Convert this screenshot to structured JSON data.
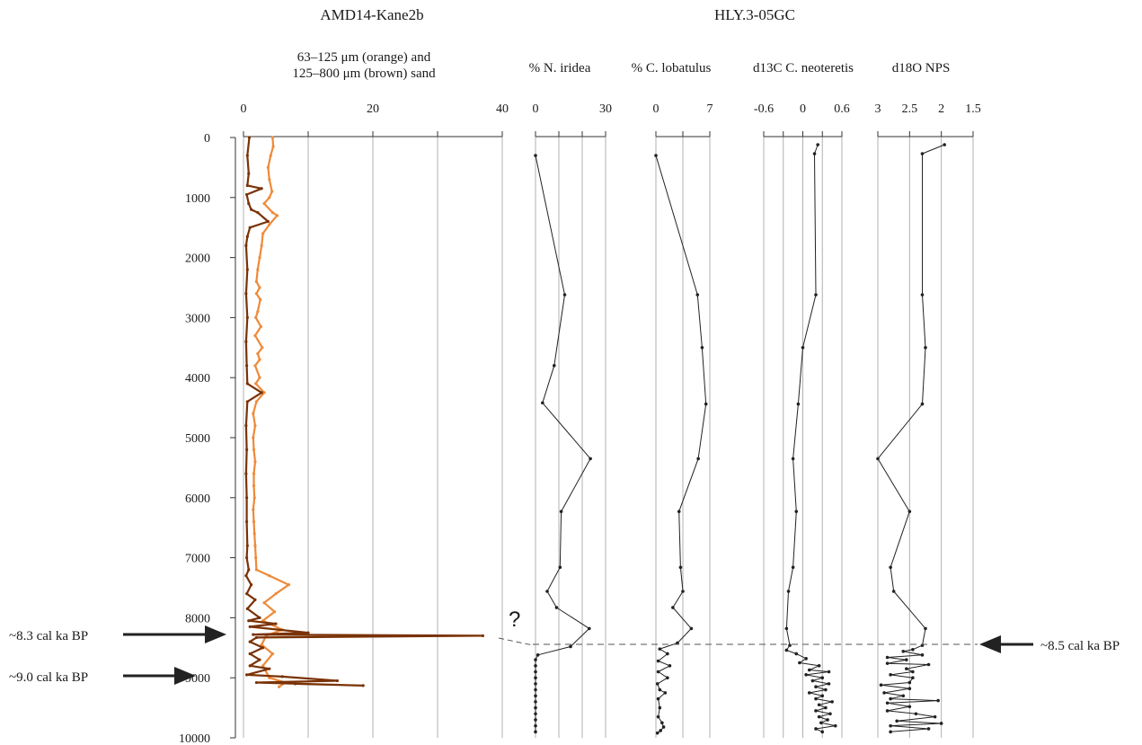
{
  "titles": {
    "left": "AMD14-Kane2b",
    "right": "HLY.3-05GC"
  },
  "annotations": {
    "question_mark": "?",
    "arrow_83": "~8.3 cal ka BP",
    "arrow_90": "~9.0 cal ka BP",
    "arrow_85": "~8.5 cal ka BP"
  },
  "colors": {
    "orange": "#ee8a3a",
    "brown": "#7a3206",
    "black": "#222222",
    "grid": "#b0b0b0"
  },
  "chart_data": [
    {
      "type": "line",
      "name": "sand",
      "title_lines": [
        "63–125 μm (orange) and",
        "125–800 μm (brown) sand"
      ],
      "xlim": [
        0,
        40
      ],
      "x_ticks": [
        "0",
        "20",
        "40"
      ],
      "x_tick_values": [
        0,
        20,
        40
      ],
      "y_ticks": [
        "0",
        "1000",
        "2000",
        "3000",
        "4000",
        "5000",
        "6000",
        "7000",
        "8000",
        "9000",
        "10000"
      ],
      "ylim": [
        0,
        10000
      ],
      "grid": true,
      "series": [
        {
          "color": "orange",
          "points": [
            [
              4.5,
              0
            ],
            [
              4.6,
              150
            ],
            [
              4.2,
              300
            ],
            [
              3.8,
              500
            ],
            [
              4.0,
              700
            ],
            [
              4.4,
              900
            ],
            [
              4.0,
              1000
            ],
            [
              3.2,
              1100
            ],
            [
              4.5,
              1250
            ],
            [
              5.2,
              1300
            ],
            [
              4.0,
              1450
            ],
            [
              3.0,
              1600
            ],
            [
              2.8,
              1800
            ],
            [
              2.5,
              2000
            ],
            [
              2.2,
              2200
            ],
            [
              2.0,
              2400
            ],
            [
              2.5,
              2500
            ],
            [
              2.0,
              2600
            ],
            [
              2.6,
              2700
            ],
            [
              2.2,
              2900
            ],
            [
              1.9,
              3000
            ],
            [
              2.7,
              3150
            ],
            [
              1.8,
              3300
            ],
            [
              2.9,
              3500
            ],
            [
              2.2,
              3600
            ],
            [
              2.5,
              3700
            ],
            [
              1.8,
              3800
            ],
            [
              2.5,
              4000
            ],
            [
              1.9,
              4100
            ],
            [
              3.2,
              4250
            ],
            [
              2.0,
              4400
            ],
            [
              1.5,
              4600
            ],
            [
              1.8,
              4800
            ],
            [
              1.5,
              5000
            ],
            [
              1.6,
              5200
            ],
            [
              1.8,
              5400
            ],
            [
              1.6,
              5600
            ],
            [
              1.6,
              5800
            ],
            [
              1.7,
              6000
            ],
            [
              1.5,
              6200
            ],
            [
              1.6,
              6400
            ],
            [
              1.7,
              6600
            ],
            [
              1.8,
              6800
            ],
            [
              1.9,
              7000
            ],
            [
              2.0,
              7200
            ],
            [
              4.0,
              7300
            ],
            [
              7.0,
              7450
            ],
            [
              5.0,
              7600
            ],
            [
              3.2,
              7750
            ],
            [
              4.8,
              7900
            ],
            [
              3.0,
              8050
            ],
            [
              6.0,
              8200
            ],
            [
              3.5,
              8300
            ],
            [
              2.8,
              8450
            ],
            [
              4.5,
              8600
            ],
            [
              3.0,
              8800
            ],
            [
              4.0,
              9000
            ],
            [
              6.5,
              9080
            ],
            [
              5.5,
              9150
            ]
          ]
        },
        {
          "color": "brown",
          "points": [
            [
              0.9,
              0
            ],
            [
              0.6,
              300
            ],
            [
              0.8,
              600
            ],
            [
              0.6,
              800
            ],
            [
              2.8,
              850
            ],
            [
              0.5,
              950
            ],
            [
              0.8,
              1100
            ],
            [
              1.2,
              1200
            ],
            [
              2.2,
              1250
            ],
            [
              3.8,
              1400
            ],
            [
              1.0,
              1500
            ],
            [
              0.6,
              1650
            ],
            [
              0.4,
              1800
            ],
            [
              0.6,
              2200
            ],
            [
              0.4,
              2600
            ],
            [
              0.6,
              3000
            ],
            [
              0.4,
              3400
            ],
            [
              0.5,
              3800
            ],
            [
              0.6,
              4100
            ],
            [
              2.8,
              4250
            ],
            [
              0.6,
              4400
            ],
            [
              0.4,
              4800
            ],
            [
              0.5,
              5200
            ],
            [
              0.4,
              5600
            ],
            [
              0.5,
              6000
            ],
            [
              0.5,
              6400
            ],
            [
              0.6,
              6800
            ],
            [
              0.5,
              7000
            ],
            [
              0.8,
              7200
            ],
            [
              0.4,
              7300
            ],
            [
              1.2,
              7450
            ],
            [
              0.5,
              7600
            ],
            [
              1.8,
              7700
            ],
            [
              0.6,
              7850
            ],
            [
              2.5,
              8000
            ],
            [
              0.8,
              8050
            ],
            [
              5.0,
              8100
            ],
            [
              1.0,
              8150
            ],
            [
              10.0,
              8250
            ],
            [
              1.5,
              8280
            ],
            [
              37.0,
              8300
            ],
            [
              2.0,
              8330
            ],
            [
              1.0,
              8400
            ],
            [
              3.0,
              8500
            ],
            [
              1.0,
              8600
            ],
            [
              2.5,
              8700
            ],
            [
              1.0,
              8800
            ],
            [
              4.0,
              8850
            ],
            [
              0.5,
              8950
            ],
            [
              6.0,
              8980
            ],
            [
              14.5,
              9050
            ],
            [
              2.0,
              9080
            ],
            [
              18.5,
              9130
            ],
            [
              8.0,
              9100
            ]
          ]
        }
      ]
    },
    {
      "type": "line",
      "name": "n_iridea",
      "title_lines": [
        "% N. iridea"
      ],
      "xlim": [
        0,
        30
      ],
      "x_ticks": [
        "0",
        "30"
      ],
      "x_tick_values": [
        0,
        30
      ],
      "grid_values": [
        0,
        10,
        20,
        30
      ],
      "ylim": [
        0,
        10000
      ],
      "grid": true,
      "series": [
        {
          "color": "black",
          "points": [
            [
              0,
              300
            ],
            [
              12.5,
              2620
            ],
            [
              8,
              3800
            ],
            [
              3,
              4420
            ],
            [
              23.5,
              5350
            ],
            [
              11,
              6230
            ],
            [
              10.5,
              7160
            ],
            [
              5,
              7560
            ],
            [
              9,
              7830
            ],
            [
              23,
              8180
            ],
            [
              15,
              8480
            ],
            [
              1,
              8620
            ],
            [
              0,
              8700
            ],
            [
              0,
              8800
            ],
            [
              0,
              8900
            ],
            [
              0,
              9000
            ],
            [
              0,
              9100
            ],
            [
              0,
              9200
            ],
            [
              0,
              9300
            ],
            [
              0,
              9400
            ],
            [
              0,
              9500
            ],
            [
              0,
              9600
            ],
            [
              0,
              9700
            ],
            [
              0,
              9800
            ],
            [
              0,
              9900
            ]
          ]
        }
      ]
    },
    {
      "type": "line",
      "name": "c_lobatulus",
      "title_lines": [
        "% C. lobatulus"
      ],
      "xlim": [
        0,
        7
      ],
      "x_ticks": [
        "0",
        "7"
      ],
      "x_tick_values": [
        0,
        7
      ],
      "grid_values": [
        0,
        3.5,
        7
      ],
      "ylim": [
        0,
        10000
      ],
      "grid": true,
      "series": [
        {
          "color": "black",
          "points": [
            [
              0,
              300
            ],
            [
              5.4,
              2620
            ],
            [
              6,
              3500
            ],
            [
              6.5,
              4440
            ],
            [
              5.5,
              5350
            ],
            [
              3,
              6230
            ],
            [
              3.2,
              7160
            ],
            [
              3.5,
              7560
            ],
            [
              2.2,
              7830
            ],
            [
              4.6,
              8180
            ],
            [
              2.8,
              8420
            ],
            [
              0.5,
              8520
            ],
            [
              1.5,
              8600
            ],
            [
              0.3,
              8720
            ],
            [
              1.8,
              8800
            ],
            [
              0.3,
              8900
            ],
            [
              1.5,
              9000
            ],
            [
              0.2,
              9100
            ],
            [
              0.5,
              9200
            ],
            [
              1.2,
              9250
            ],
            [
              0.3,
              9350
            ],
            [
              0.5,
              9500
            ],
            [
              0.3,
              9650
            ],
            [
              0.8,
              9750
            ],
            [
              1.0,
              9820
            ],
            [
              0.6,
              9880
            ],
            [
              0.2,
              9920
            ]
          ]
        }
      ]
    },
    {
      "type": "line",
      "name": "d13c",
      "title_lines": [
        "d13C C. neoteretis"
      ],
      "xlim": [
        -0.6,
        0.6
      ],
      "x_ticks": [
        "-0.6",
        "0",
        "0.6"
      ],
      "x_tick_values": [
        -0.6,
        0,
        0.6
      ],
      "grid_values": [
        -0.6,
        -0.3,
        0,
        0.3,
        0.6
      ],
      "ylim": [
        0,
        10000
      ],
      "grid": true,
      "series": [
        {
          "color": "black",
          "points": [
            [
              0.23,
              120
            ],
            [
              0.18,
              270
            ],
            [
              0.2,
              2620
            ],
            [
              0.0,
              3500
            ],
            [
              -0.07,
              4440
            ],
            [
              -0.15,
              5350
            ],
            [
              -0.1,
              6230
            ],
            [
              -0.15,
              7160
            ],
            [
              -0.22,
              7560
            ],
            [
              -0.25,
              8180
            ],
            [
              -0.2,
              8460
            ],
            [
              -0.25,
              8540
            ],
            [
              -0.1,
              8600
            ],
            [
              0.05,
              8680
            ],
            [
              -0.05,
              8750
            ],
            [
              0.25,
              8800
            ],
            [
              0.1,
              8870
            ],
            [
              0.4,
              8900
            ],
            [
              0.05,
              8950
            ],
            [
              0.3,
              9000
            ],
            [
              0.15,
              9050
            ],
            [
              0.4,
              9100
            ],
            [
              0.2,
              9150
            ],
            [
              0.35,
              9200
            ],
            [
              0.1,
              9250
            ],
            [
              0.3,
              9300
            ],
            [
              0.2,
              9350
            ],
            [
              0.45,
              9400
            ],
            [
              0.25,
              9450
            ],
            [
              0.35,
              9500
            ],
            [
              0.2,
              9550
            ],
            [
              0.42,
              9600
            ],
            [
              0.25,
              9650
            ],
            [
              0.38,
              9700
            ],
            [
              0.28,
              9750
            ],
            [
              0.5,
              9800
            ],
            [
              0.2,
              9850
            ],
            [
              0.3,
              9900
            ]
          ]
        }
      ]
    },
    {
      "type": "line",
      "name": "d18o",
      "title_lines": [
        "d18O NPS"
      ],
      "xlim": [
        3,
        1.5
      ],
      "x_ticks": [
        "3",
        "2.5",
        "2",
        "1.5"
      ],
      "x_tick_values": [
        3,
        2.5,
        2,
        1.5
      ],
      "ylim": [
        0,
        10000
      ],
      "grid": true,
      "series": [
        {
          "color": "black",
          "points": [
            [
              1.95,
              120
            ],
            [
              2.3,
              270
            ],
            [
              2.3,
              2620
            ],
            [
              2.25,
              3500
            ],
            [
              2.3,
              4440
            ],
            [
              3.0,
              5350
            ],
            [
              2.5,
              6230
            ],
            [
              2.8,
              7160
            ],
            [
              2.75,
              7560
            ],
            [
              2.25,
              8180
            ],
            [
              2.3,
              8460
            ],
            [
              2.45,
              8530
            ],
            [
              2.6,
              8560
            ],
            [
              2.3,
              8620
            ],
            [
              2.85,
              8660
            ],
            [
              2.55,
              8700
            ],
            [
              2.85,
              8760
            ],
            [
              2.2,
              8780
            ],
            [
              2.55,
              8850
            ],
            [
              2.45,
              8900
            ],
            [
              2.8,
              8950
            ],
            [
              2.45,
              9000
            ],
            [
              2.5,
              9080
            ],
            [
              2.95,
              9120
            ],
            [
              2.5,
              9180
            ],
            [
              2.9,
              9250
            ],
            [
              2.6,
              9300
            ],
            [
              2.8,
              9350
            ],
            [
              2.05,
              9380
            ],
            [
              2.85,
              9420
            ],
            [
              2.5,
              9480
            ],
            [
              2.85,
              9550
            ],
            [
              2.4,
              9600
            ],
            [
              2.1,
              9650
            ],
            [
              2.7,
              9720
            ],
            [
              2.0,
              9760
            ],
            [
              2.8,
              9800
            ],
            [
              2.2,
              9850
            ],
            [
              2.8,
              9900
            ]
          ]
        }
      ]
    }
  ]
}
